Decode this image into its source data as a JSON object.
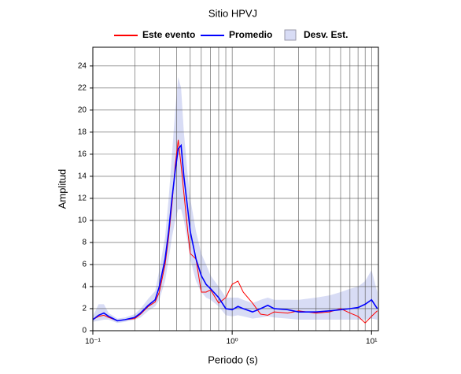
{
  "chart_data": {
    "type": "line",
    "title": "Sitio HPVJ",
    "x_label": "Periodo (s)",
    "y_label": "Amplitud",
    "log_x": true,
    "grid": true,
    "xlim": [
      0.1,
      11.2
    ],
    "ylim": [
      0,
      25.7
    ],
    "xticks": [
      {
        "value": 0.1,
        "label": "10⁻¹"
      },
      {
        "value": 1,
        "label": "10⁰"
      },
      {
        "value": 10,
        "label": "10¹"
      }
    ],
    "xminorticks": [
      0.2,
      0.3,
      0.4,
      0.5,
      0.6,
      0.7,
      0.8,
      0.9,
      2,
      3,
      4,
      5,
      6,
      7,
      8,
      9
    ],
    "yticks": [
      0,
      2,
      4,
      6,
      8,
      10,
      12,
      14,
      16,
      18,
      20,
      22,
      24
    ],
    "x": [
      0.1,
      0.11,
      0.12,
      0.13,
      0.15,
      0.17,
      0.2,
      0.22,
      0.25,
      0.28,
      0.3,
      0.33,
      0.35,
      0.37,
      0.39,
      0.41,
      0.43,
      0.45,
      0.48,
      0.5,
      0.55,
      0.6,
      0.65,
      0.7,
      0.8,
      0.9,
      1.0,
      1.1,
      1.2,
      1.4,
      1.6,
      1.8,
      2,
      2.5,
      3,
      4,
      5,
      6,
      7,
      8,
      9,
      10,
      11
    ],
    "series": [
      {
        "name": "Este evento",
        "color": "#ff0000",
        "values": [
          1.0,
          1.3,
          1.4,
          1.2,
          0.9,
          1.0,
          1.1,
          1.5,
          2.2,
          2.6,
          3.5,
          6,
          8.5,
          11.5,
          15,
          17.3,
          15,
          12.5,
          9,
          7,
          6.5,
          3.5,
          3.5,
          3.7,
          2.5,
          3.0,
          4.2,
          4.5,
          3.5,
          2.5,
          1.5,
          1.4,
          1.7,
          1.6,
          1.8,
          1.6,
          1.7,
          2.0,
          1.6,
          1.3,
          0.7,
          1.3,
          1.8
        ]
      },
      {
        "name": "Promedio",
        "color": "#0000ff",
        "values": [
          1.0,
          1.4,
          1.6,
          1.3,
          0.9,
          1.0,
          1.2,
          1.6,
          2.3,
          2.8,
          4,
          6.5,
          9,
          12,
          14.5,
          16.5,
          16.8,
          14,
          11,
          9,
          6.5,
          5,
          4.2,
          3.8,
          3,
          2,
          1.9,
          2.2,
          2.0,
          1.7,
          2.0,
          2.3,
          2.0,
          1.9,
          1.7,
          1.7,
          1.8,
          1.9,
          2.0,
          2.1,
          2.4,
          2.8,
          2.0
        ]
      },
      {
        "name": "Desv. Est.",
        "color": "#d8dcf5",
        "band": true,
        "upper": [
          1.3,
          2.4,
          2.4,
          1.6,
          1.1,
          1.2,
          1.5,
          2.0,
          2.9,
          3.6,
          5.5,
          8.5,
          12,
          16,
          20,
          23,
          22,
          18,
          14,
          12,
          9,
          7,
          6,
          5,
          4,
          3,
          3,
          3,
          2.8,
          2.5,
          2.8,
          3,
          2.8,
          2.8,
          2.8,
          3,
          3.2,
          3.5,
          3.8,
          4,
          4.5,
          5.5,
          3.5
        ],
        "lower": [
          0.8,
          0.9,
          1.0,
          1.0,
          0.7,
          0.8,
          1.0,
          1.2,
          1.8,
          2.2,
          2.8,
          4.5,
          6.5,
          8.5,
          10,
          11,
          11,
          10,
          8,
          6.5,
          4.5,
          3.5,
          3,
          2.8,
          2.2,
          1.4,
          1.3,
          1.4,
          1.3,
          1.1,
          1.2,
          1.3,
          1.2,
          1.1,
          1.0,
          1.0,
          1.0,
          1.0,
          1.0,
          1.0,
          1.0,
          1.1,
          1.0
        ]
      }
    ]
  }
}
